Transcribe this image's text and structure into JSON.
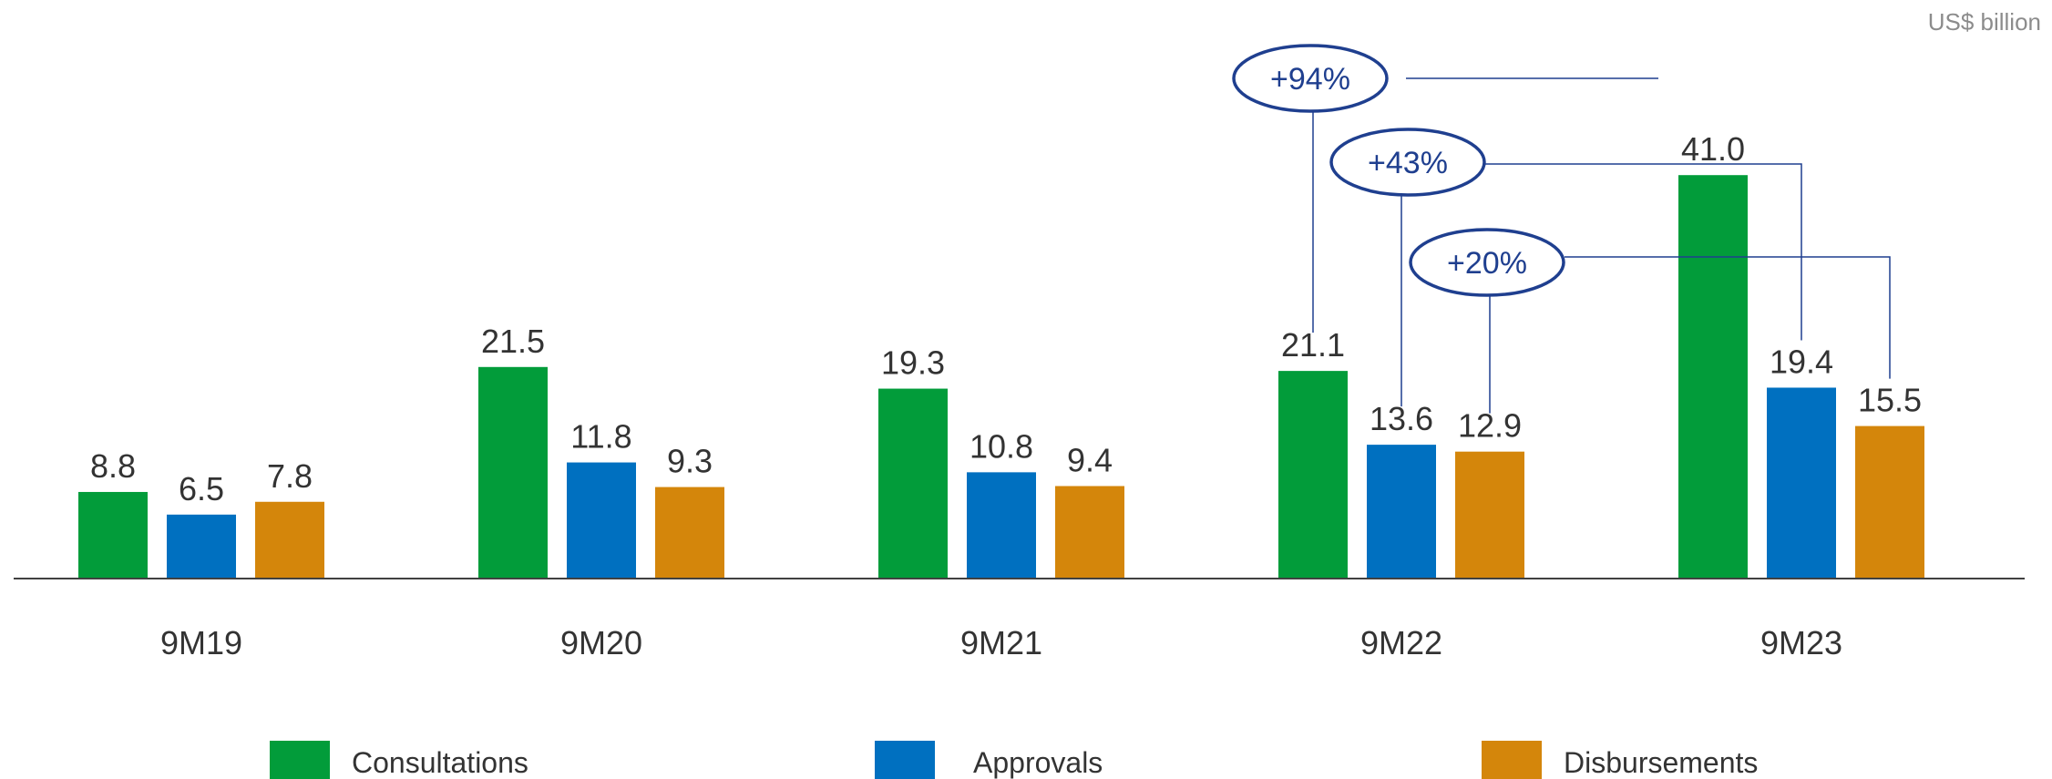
{
  "unit_label": "US$ billion",
  "chart_data": {
    "type": "bar",
    "categories": [
      "9M19",
      "9M20",
      "9M21",
      "9M22",
      "9M23"
    ],
    "series": [
      {
        "name": "Consultations",
        "color": "#029C3A",
        "values": [
          8.8,
          21.5,
          19.3,
          21.1,
          41.0
        ]
      },
      {
        "name": "Approvals",
        "color": "#0070C0",
        "values": [
          6.5,
          11.8,
          10.8,
          13.6,
          19.4
        ]
      },
      {
        "name": "Disbursements",
        "color": "#D4860B",
        "values": [
          7.8,
          9.3,
          9.4,
          12.9,
          15.5
        ]
      }
    ],
    "ylim": [
      0,
      41
    ],
    "grid": false,
    "legend": "bottom",
    "annotations": [
      {
        "label": "+94%",
        "series": "Consultations",
        "from": "9M22",
        "to": "9M23"
      },
      {
        "label": "+43%",
        "series": "Approvals",
        "from": "9M22",
        "to": "9M23"
      },
      {
        "label": "+20%",
        "series": "Disbursements",
        "from": "9M22",
        "to": "9M23"
      }
    ],
    "annotation_color": "#1F3F8F"
  }
}
